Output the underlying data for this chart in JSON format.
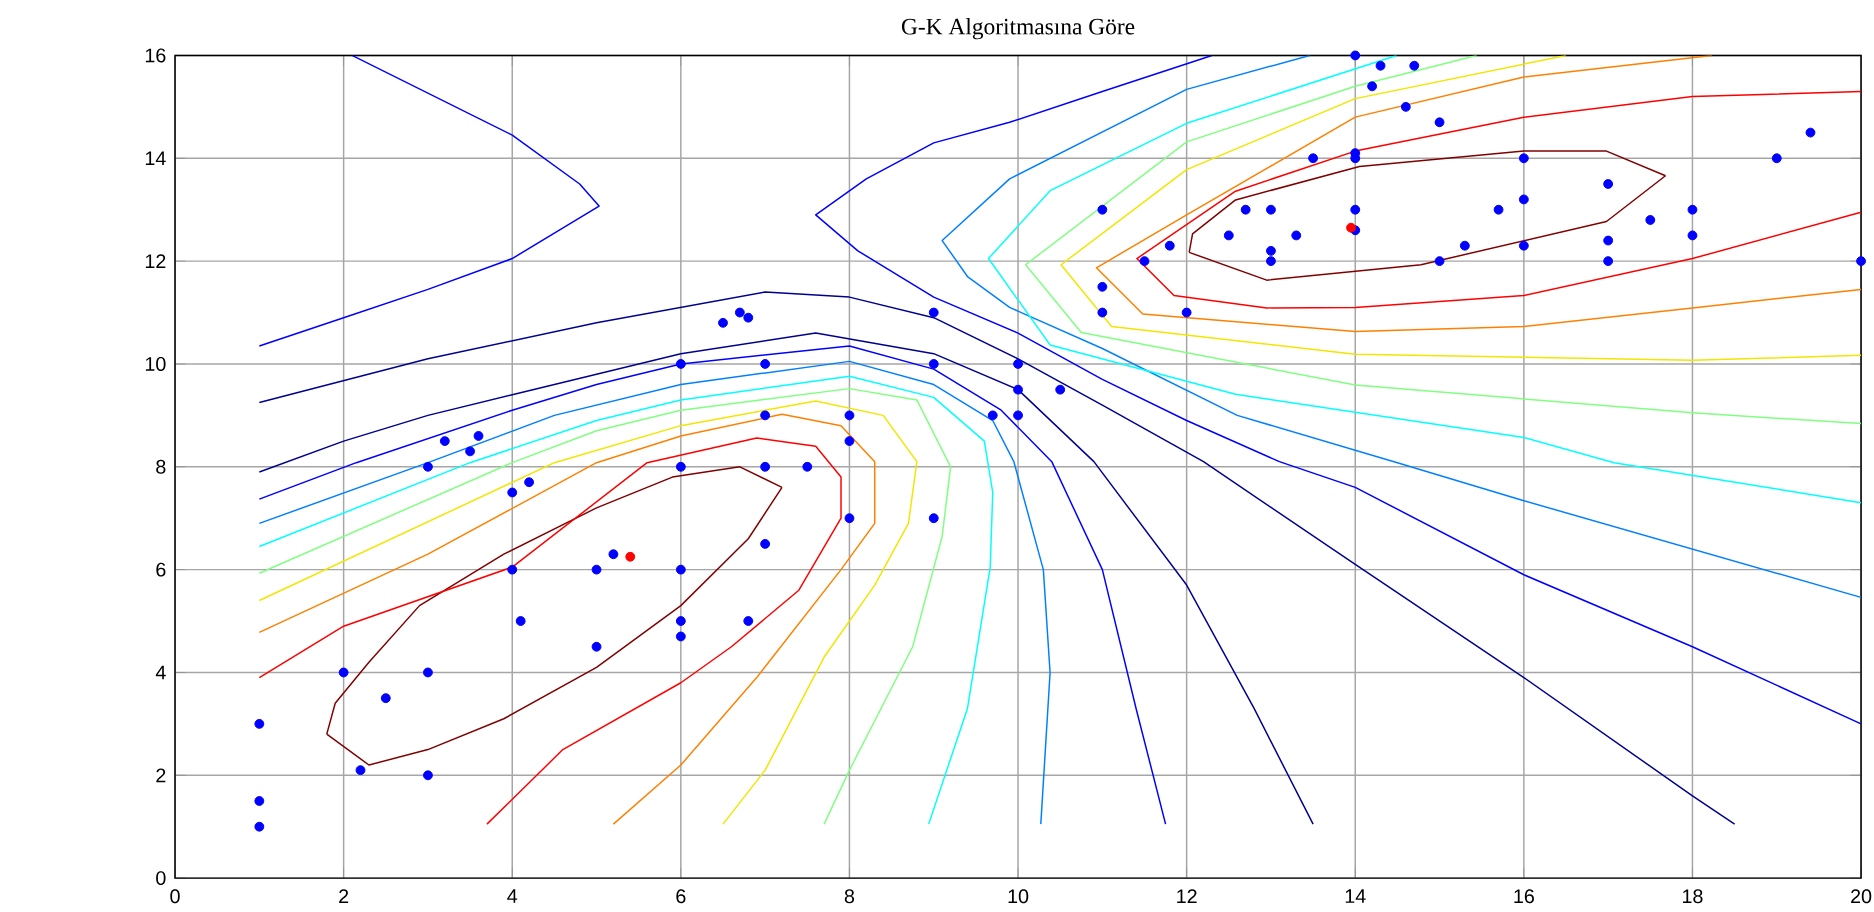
{
  "chart_data": {
    "type": "scatter",
    "title": "G-K Algoritmasına Göre",
    "xlim": [
      0,
      20
    ],
    "ylim": [
      0,
      16
    ],
    "xticks": [
      0,
      2,
      4,
      6,
      8,
      10,
      12,
      14,
      16,
      18,
      20
    ],
    "yticks": [
      0,
      2,
      4,
      6,
      8,
      10,
      12,
      14,
      16
    ],
    "grid": true,
    "marker": "circle",
    "series": [
      {
        "type": "line",
        "marker": "none",
        "color": "#800000",
        "x": [
          1.8,
          2.3,
          3,
          3.9,
          5,
          6,
          6.8,
          7.2
        ],
        "values": [
          2.8,
          2.2,
          2.5,
          3.1,
          4.1,
          5.3,
          6.6,
          7.6
        ]
      },
      {
        "type": "line",
        "marker": "none",
        "color": "#800000",
        "x": [
          1.8,
          1.9,
          2.3,
          2.9,
          3.9,
          5,
          5.9,
          6.7,
          7.2
        ],
        "values": [
          2.8,
          3.4,
          4.2,
          5.3,
          6.3,
          7.2,
          7.8,
          8.0,
          7.6
        ]
      },
      {
        "type": "line",
        "marker": "none",
        "color": "#ff0000",
        "x": [
          1,
          2,
          4,
          5.6,
          6.9,
          7.6,
          7.9,
          7.9,
          7.4,
          6.6,
          6,
          4.6,
          3.7
        ],
        "values": [
          3.9,
          4.9,
          6.05,
          8.08,
          8.56,
          8.4,
          7.8,
          7.0,
          5.6,
          4.5,
          3.8,
          2.5,
          1.05
        ]
      },
      {
        "type": "line",
        "marker": "none",
        "color": "#ff8000",
        "x": [
          1,
          3,
          5,
          6,
          7.2,
          7.9,
          8.3,
          8.3,
          7.9,
          6.9,
          6,
          5.2
        ],
        "values": [
          4.78,
          6.3,
          8.08,
          8.6,
          9.02,
          8.8,
          8.1,
          6.9,
          6.0,
          3.9,
          2.2,
          1.05
        ]
      },
      {
        "type": "line",
        "marker": "none",
        "color": "#f2e600",
        "x": [
          1,
          4.5,
          6,
          7.6,
          8.4,
          8.8,
          8.7,
          8.3,
          7.7,
          7.0,
          6.5
        ],
        "values": [
          5.4,
          8.08,
          8.8,
          9.28,
          9.0,
          8.1,
          6.9,
          5.7,
          4.3,
          2.1,
          1.05
        ]
      },
      {
        "type": "line",
        "marker": "none",
        "color": "#80ff80",
        "x": [
          1,
          4,
          5,
          6,
          8,
          8.8,
          9.2,
          9.1,
          8.75,
          8.0,
          7.7
        ],
        "values": [
          5.93,
          8.08,
          8.7,
          9.1,
          9.52,
          9.3,
          8.0,
          6.65,
          4.5,
          2.1,
          1.05
        ]
      },
      {
        "type": "line",
        "marker": "none",
        "color": "#00ffff",
        "x": [
          1,
          3.5,
          5,
          6,
          8,
          9,
          9.6,
          9.7,
          9.67,
          9.4,
          8.94
        ],
        "values": [
          6.45,
          8.08,
          8.9,
          9.3,
          9.76,
          9.35,
          8.5,
          7.5,
          6.05,
          3.3,
          1.05
        ]
      },
      {
        "type": "line",
        "marker": "none",
        "color": "#0080ff",
        "x": [
          1,
          3,
          4.5,
          6,
          8,
          9,
          9.7,
          9.95,
          10.3,
          10.38,
          10.27
        ],
        "values": [
          6.9,
          8.08,
          9.0,
          9.6,
          10.05,
          9.6,
          8.9,
          8.1,
          6.0,
          4.0,
          1.05
        ]
      },
      {
        "type": "line",
        "marker": "none",
        "color": "#0000ff",
        "x": [
          1,
          2.15,
          4,
          5,
          6,
          8,
          9,
          9.8,
          10.4,
          11,
          11.4,
          11.75
        ],
        "values": [
          7.37,
          8.08,
          9.1,
          9.6,
          10.0,
          10.35,
          9.9,
          9.1,
          8.1,
          6.0,
          3.3,
          1.05
        ]
      },
      {
        "type": "line",
        "marker": "none",
        "color": "#00008f",
        "x": [
          1,
          2,
          3,
          4,
          5,
          6,
          7.6,
          9,
          10,
          10.9,
          12,
          12.8,
          13.5
        ],
        "values": [
          7.9,
          8.5,
          9.0,
          9.4,
          9.8,
          10.2,
          10.6,
          10.2,
          9.5,
          8.1,
          5.7,
          3.3,
          1.05
        ]
      },
      {
        "type": "line",
        "marker": "none",
        "color": "#00008f",
        "x": [
          1,
          3,
          5,
          7,
          8,
          9,
          10,
          11,
          12.2,
          14,
          16,
          18,
          18.5
        ],
        "values": [
          9.25,
          10.1,
          10.8,
          11.4,
          11.3,
          10.9,
          10.1,
          9.2,
          8.1,
          6.1,
          3.9,
          1.6,
          1.05
        ]
      },
      {
        "type": "line",
        "marker": "none",
        "color": "#0000ff",
        "x": [
          1,
          2,
          3,
          4,
          5.03,
          4.8,
          4,
          2.1
        ],
        "values": [
          10.35,
          10.9,
          11.45,
          12.05,
          13.07,
          13.5,
          14.45,
          16
        ]
      },
      {
        "type": "line",
        "marker": "none",
        "color": "#0000ff",
        "x": [
          12.3,
          11,
          9.9,
          9,
          8.2,
          7.6,
          8.1,
          9,
          10,
          11,
          12,
          13.1,
          14,
          16,
          18,
          20
        ],
        "values": [
          16,
          15.3,
          14.7,
          14.3,
          13.6,
          12.9,
          12.2,
          11.3,
          10.6,
          9.7,
          8.9,
          8.1,
          7.6,
          5.9,
          4.5,
          3.0
        ]
      },
      {
        "type": "line",
        "marker": "none",
        "color": "#0080ff",
        "x": [
          13.46,
          12,
          9.9,
          9.1,
          9.4,
          9.9,
          11,
          12.6,
          14.5,
          16,
          18,
          20
        ],
        "values": [
          16,
          15.34,
          13.6,
          12.4,
          11.7,
          11.1,
          10.3,
          9.0,
          8.08,
          7.34,
          6.4,
          5.46
        ]
      },
      {
        "type": "line",
        "marker": "none",
        "color": "#00ffff",
        "x": [
          14.49,
          12,
          10.38,
          9.65,
          10.38,
          12.58,
          16,
          17.07,
          20
        ],
        "values": [
          16,
          14.68,
          13.37,
          12.05,
          10.37,
          9.41,
          8.57,
          8.08,
          7.3
        ]
      },
      {
        "type": "line",
        "marker": "none",
        "color": "#80ff80",
        "x": [
          15.44,
          14,
          12,
          10.09,
          10.75,
          14,
          18,
          20
        ],
        "values": [
          16,
          15.4,
          14.32,
          11.93,
          10.61,
          9.59,
          9.05,
          8.84
        ]
      },
      {
        "type": "line",
        "marker": "none",
        "color": "#f2e600",
        "x": [
          16.5,
          14,
          12,
          10.51,
          11.11,
          14,
          18,
          20
        ],
        "values": [
          16,
          15.16,
          13.78,
          11.93,
          10.73,
          10.19,
          10.07,
          10.17
        ]
      },
      {
        "type": "line",
        "marker": "none",
        "color": "#ff8000",
        "x": [
          18.23,
          16,
          14,
          12,
          10.93,
          11.48,
          14,
          16,
          18,
          20
        ],
        "values": [
          16,
          15.58,
          14.8,
          12.9,
          11.87,
          10.97,
          10.63,
          10.73,
          11.09,
          11.45
        ]
      },
      {
        "type": "line",
        "marker": "none",
        "color": "#ff0000",
        "x": [
          20,
          18,
          16,
          14,
          12.58,
          11.41,
          11.85,
          12.95,
          14,
          16,
          18,
          20
        ],
        "values": [
          15.3,
          15.2,
          14.8,
          14.14,
          13.36,
          12.05,
          11.33,
          11.09,
          11.1,
          11.33,
          12.05,
          12.95
        ]
      },
      {
        "type": "line",
        "marker": "none",
        "color": "#800000",
        "x": [
          12.03,
          12.95,
          14.78,
          16.98,
          17.68
        ],
        "values": [
          12.17,
          11.63,
          11.93,
          12.77,
          13.66
        ]
      },
      {
        "type": "line",
        "marker": "none",
        "color": "#800000",
        "x": [
          12.03,
          12.07,
          12.58,
          14.05,
          16,
          16.98,
          17.68
        ],
        "values": [
          12.17,
          12.53,
          13.19,
          13.84,
          14.14,
          14.14,
          13.66
        ]
      },
      {
        "color": "#0000ff",
        "x": [
          1,
          1,
          1,
          2,
          2.2,
          2.5,
          3,
          3,
          3,
          3.2,
          3.5,
          3.6,
          4,
          4.2,
          4,
          4.1,
          5,
          5,
          5.2,
          6,
          6,
          6,
          6,
          6,
          6.5,
          6.7,
          6.8,
          7,
          7,
          7,
          7,
          6.8,
          7.5,
          8,
          8,
          8,
          9,
          9,
          9,
          9.7,
          10,
          10,
          10,
          10.5,
          11,
          11,
          11,
          11.5,
          11.8,
          12,
          12.5,
          12.7,
          13,
          13,
          13,
          13.3,
          13.5,
          14,
          14,
          14,
          14,
          14,
          14.2,
          14.3,
          14.6,
          14.7,
          15,
          15,
          15.3,
          15.7,
          16,
          16,
          16,
          17,
          17,
          17,
          17.5,
          18,
          18,
          19,
          19.4,
          20
        ],
        "values": [
          1,
          1.5,
          3,
          4,
          2.1,
          3.5,
          2,
          4,
          8,
          8.5,
          8.3,
          8.6,
          7.5,
          7.7,
          6,
          5,
          6,
          4.5,
          6.3,
          6,
          5,
          4.7,
          8,
          10,
          10.8,
          11,
          10.9,
          10,
          9,
          8,
          6.5,
          5,
          8,
          9,
          8.5,
          7,
          11,
          10,
          7,
          9,
          10,
          9.5,
          9,
          9.5,
          13,
          11.5,
          11,
          12,
          12.3,
          11,
          12.5,
          13,
          13,
          12.2,
          12,
          12.5,
          14,
          16,
          14.1,
          14,
          13,
          12.6,
          15.4,
          15.8,
          15,
          15.8,
          14.7,
          12,
          12.3,
          13,
          14,
          13.2,
          12.3,
          13.5,
          12.4,
          12,
          12.8,
          13,
          12.5,
          14,
          14.5,
          12
        ]
      },
      {
        "color": "#ff0000",
        "x": [
          5.4,
          13.95
        ],
        "values": [
          6.25,
          12.65
        ]
      }
    ]
  }
}
